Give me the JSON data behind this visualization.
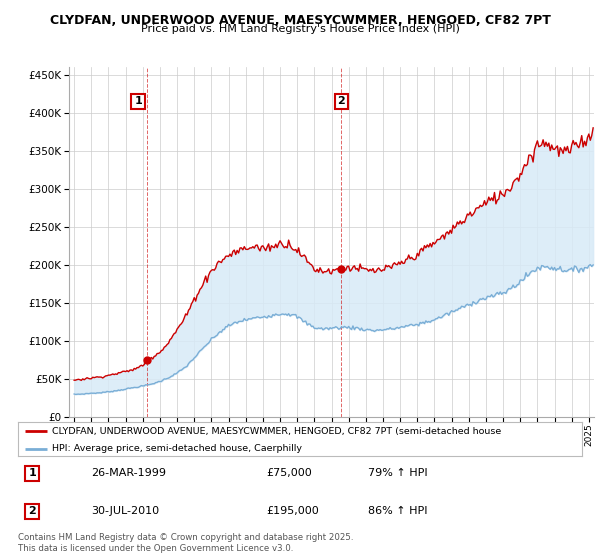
{
  "title_line1": "CLYDFAN, UNDERWOOD AVENUE, MAESYCWMMER, HENGOED, CF82 7PT",
  "title_line2": "Price paid vs. HM Land Registry's House Price Index (HPI)",
  "legend_label_red": "CLYDFAN, UNDERWOOD AVENUE, MAESYCWMMER, HENGOED, CF82 7PT (semi-detached house",
  "legend_label_blue": "HPI: Average price, semi-detached house, Caerphilly",
  "sale1_x": 1999.23,
  "sale1_y": 75000,
  "sale2_x": 2010.58,
  "sale2_y": 195000,
  "ylim": [
    0,
    460000
  ],
  "xlim_start": 1994.7,
  "xlim_end": 2025.3,
  "red_color": "#cc0000",
  "blue_color": "#7aaed6",
  "fill_color": "#d8eaf7",
  "grid_color": "#cccccc",
  "bg_color": "#ffffff",
  "footer": "Contains HM Land Registry data © Crown copyright and database right 2025.\nThis data is licensed under the Open Government Licence v3.0.",
  "yticks": [
    0,
    50000,
    100000,
    150000,
    200000,
    250000,
    300000,
    350000,
    400000,
    450000
  ]
}
